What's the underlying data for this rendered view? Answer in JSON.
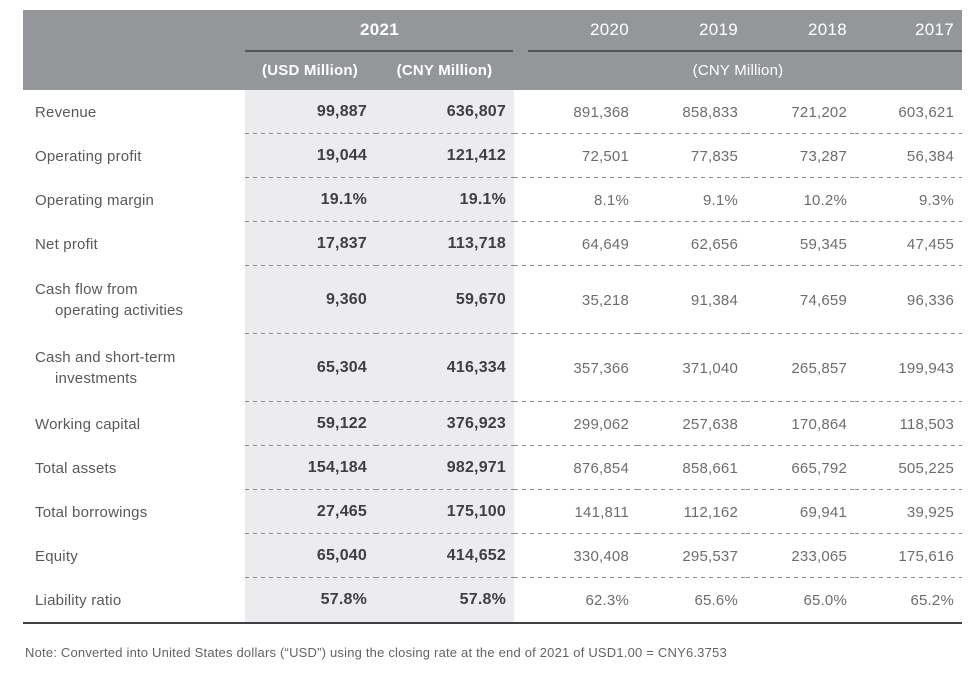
{
  "table": {
    "header": {
      "group_2021": "2021",
      "sub_usd": "(USD Million)",
      "sub_cny": "(CNY Million)",
      "years": [
        "2020",
        "2019",
        "2018",
        "2017"
      ],
      "right_unit": "(CNY Million)"
    },
    "rows": [
      {
        "label": "Revenue",
        "usd": "99,887",
        "cny": "636,807",
        "y2020": "891,368",
        "y2019": "858,833",
        "y2018": "721,202",
        "y2017": "603,621"
      },
      {
        "label": "Operating profit",
        "usd": "19,044",
        "cny": "121,412",
        "y2020": "72,501",
        "y2019": "77,835",
        "y2018": "73,287",
        "y2017": "56,384"
      },
      {
        "label": "Operating margin",
        "usd": "19.1%",
        "cny": "19.1%",
        "y2020": "8.1%",
        "y2019": "9.1%",
        "y2018": "10.2%",
        "y2017": "9.3%"
      },
      {
        "label": "Net profit",
        "usd": "17,837",
        "cny": "113,718",
        "y2020": "64,649",
        "y2019": "62,656",
        "y2018": "59,345",
        "y2017": "47,455"
      },
      {
        "label": "Cash flow from\noperating activities",
        "usd": "9,360",
        "cny": "59,670",
        "y2020": "35,218",
        "y2019": "91,384",
        "y2018": "74,659",
        "y2017": "96,336"
      },
      {
        "label": "Cash and short-term\ninvestments",
        "usd": "65,304",
        "cny": "416,334",
        "y2020": "357,366",
        "y2019": "371,040",
        "y2018": "265,857",
        "y2017": "199,943"
      },
      {
        "label": "Working capital",
        "usd": "59,122",
        "cny": "376,923",
        "y2020": "299,062",
        "y2019": "257,638",
        "y2018": "170,864",
        "y2017": "118,503"
      },
      {
        "label": "Total assets",
        "usd": "154,184",
        "cny": "982,971",
        "y2020": "876,854",
        "y2019": "858,661",
        "y2018": "665,792",
        "y2017": "505,225"
      },
      {
        "label": "Total borrowings",
        "usd": "27,465",
        "cny": "175,100",
        "y2020": "141,811",
        "y2019": "112,162",
        "y2018": "69,941",
        "y2017": "39,925"
      },
      {
        "label": "Equity",
        "usd": "65,040",
        "cny": "414,652",
        "y2020": "330,408",
        "y2019": "295,537",
        "y2018": "233,065",
        "y2017": "175,616"
      },
      {
        "label": "Liability ratio",
        "usd": "57.8%",
        "cny": "57.8%",
        "y2020": "62.3%",
        "y2019": "65.6%",
        "y2018": "65.0%",
        "y2017": "65.2%"
      }
    ],
    "note": "Note: Converted into United States dollars (“USD”) using the closing rate at the end of 2021 of USD1.00 = CNY6.3753"
  },
  "colors": {
    "header_bg": "#94969a",
    "highlight_col_bg": "#ececee",
    "header_text": "#ffffff",
    "label_text": "#58595c",
    "bold_value_text": "#3e3f42",
    "value_text": "#6c6d70",
    "rule_dark": "#54565a",
    "dashed_line": "#8c8c8e",
    "bottom_rule": "#3f4043"
  }
}
